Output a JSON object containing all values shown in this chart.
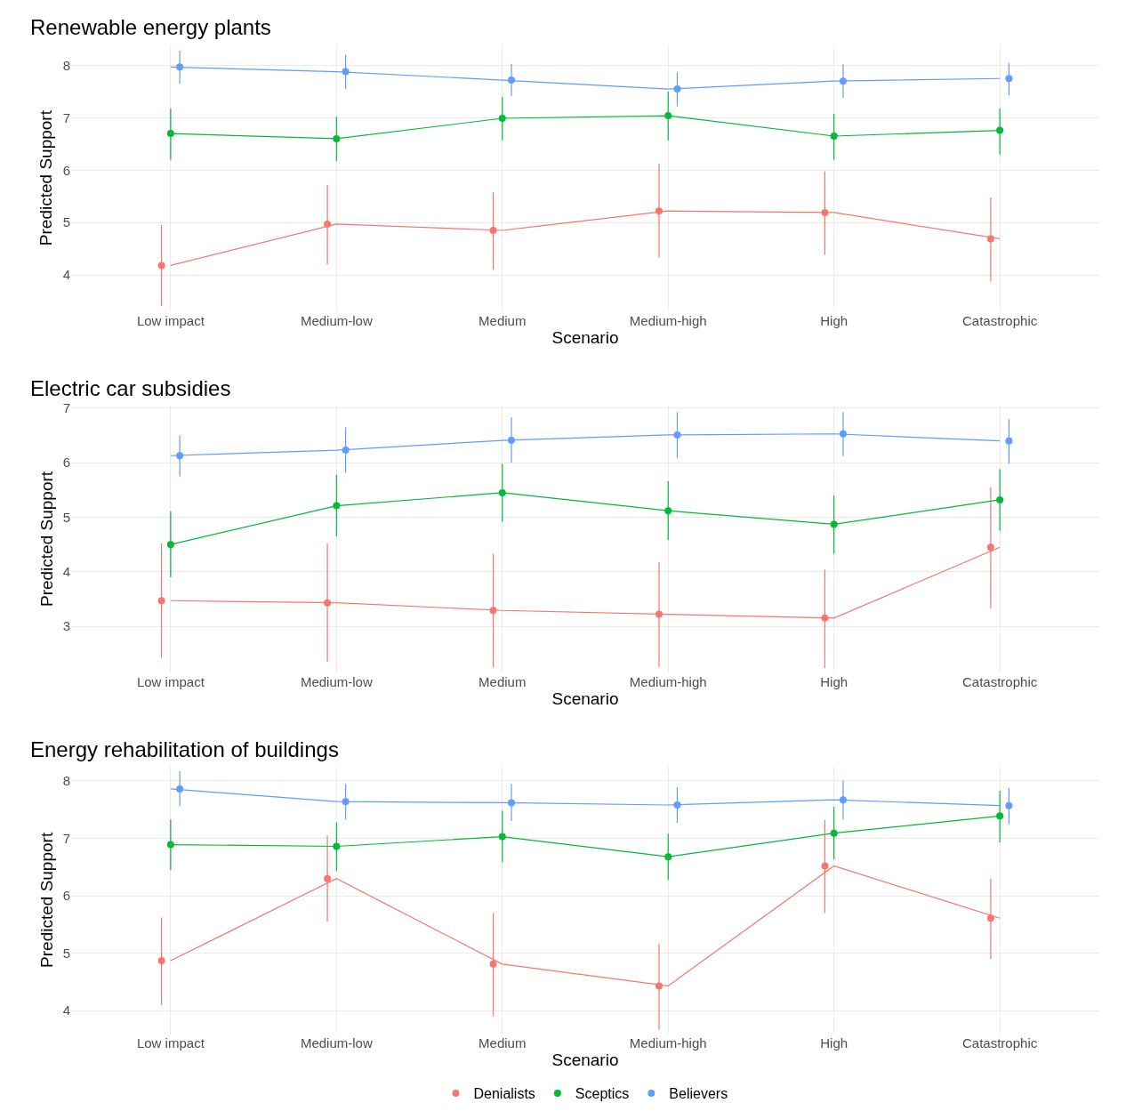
{
  "chart_data": [
    {
      "type": "line",
      "title": "Renewable energy plants",
      "xlabel": "Scenario",
      "ylabel": "Predicted Support",
      "categories": [
        "Low impact",
        "Medium-low",
        "Medium",
        "Medium-high",
        "High",
        "Catastrophic"
      ],
      "ylim": [
        3.3,
        8.4
      ],
      "yticks": [
        4,
        5,
        6,
        7,
        8
      ],
      "grid": true,
      "legend": "bottom",
      "marker": "circle",
      "series": [
        {
          "name": "Denialists",
          "color": "#f8766d",
          "values": [
            4.18,
            4.97,
            4.85,
            5.22,
            5.19,
            4.69
          ],
          "errors": [
            [
              3.4,
              4.95
            ],
            [
              4.2,
              5.72
            ],
            [
              4.1,
              5.58
            ],
            [
              4.33,
              6.12
            ],
            [
              4.38,
              5.98
            ],
            [
              3.87,
              5.48
            ]
          ]
        },
        {
          "name": "Sceptics",
          "color": "#00ba38",
          "values": [
            6.7,
            6.6,
            6.99,
            7.04,
            6.65,
            6.76
          ],
          "errors": [
            [
              6.2,
              7.18
            ],
            [
              6.17,
              7.02
            ],
            [
              6.57,
              7.4
            ],
            [
              6.57,
              7.5
            ],
            [
              6.2,
              7.08
            ],
            [
              6.3,
              7.18
            ]
          ]
        },
        {
          "name": "Believers",
          "color": "#619cff",
          "values": [
            7.97,
            7.88,
            7.72,
            7.55,
            7.7,
            7.75
          ],
          "errors": [
            [
              7.65,
              8.28
            ],
            [
              7.55,
              8.2
            ],
            [
              7.42,
              8.03
            ],
            [
              7.22,
              7.87
            ],
            [
              7.38,
              8.02
            ],
            [
              7.43,
              8.05
            ]
          ]
        }
      ]
    },
    {
      "type": "line",
      "title": "Electric car subsidies",
      "xlabel": "Scenario",
      "ylabel": "Predicted Support",
      "categories": [
        "Low impact",
        "Medium-low",
        "Medium",
        "Medium-high",
        "High",
        "Catastrophic"
      ],
      "ylim": [
        2.15,
        7.05
      ],
      "yticks": [
        3,
        4,
        5,
        6,
        7
      ],
      "grid": true,
      "marker": "circle",
      "series": [
        {
          "color": "#f8766d",
          "values": [
            3.47,
            3.43,
            3.29,
            3.22,
            3.15,
            4.45
          ],
          "errors": [
            [
              2.42,
              4.52
            ],
            [
              2.35,
              4.52
            ],
            [
              2.25,
              4.33
            ],
            [
              2.25,
              4.18
            ],
            [
              2.23,
              4.04
            ],
            [
              3.33,
              5.55
            ]
          ]
        },
        {
          "color": "#00ba38",
          "values": [
            4.5,
            5.21,
            5.45,
            5.12,
            4.87,
            5.32
          ],
          "errors": [
            [
              3.9,
              5.11
            ],
            [
              4.65,
              5.78
            ],
            [
              4.92,
              5.98
            ],
            [
              4.58,
              5.66
            ],
            [
              4.33,
              5.4
            ],
            [
              4.75,
              5.88
            ]
          ]
        },
        {
          "color": "#619cff",
          "values": [
            6.13,
            6.23,
            6.41,
            6.51,
            6.53,
            6.4
          ],
          "errors": [
            [
              5.75,
              6.5
            ],
            [
              5.82,
              6.65
            ],
            [
              6.0,
              6.83
            ],
            [
              6.08,
              6.93
            ],
            [
              6.12,
              6.93
            ],
            [
              5.98,
              6.8
            ]
          ]
        }
      ]
    },
    {
      "type": "line",
      "title": "Energy rehabilitation of buildings",
      "xlabel": "Scenario",
      "ylabel": "Predicted Support",
      "categories": [
        "Low impact",
        "Medium-low",
        "Medium",
        "Medium-high",
        "High",
        "Catastrophic"
      ],
      "ylim": [
        3.6,
        8.25
      ],
      "yticks": [
        4,
        5,
        6,
        7,
        8
      ],
      "grid": true,
      "marker": "circle",
      "series": [
        {
          "color": "#f8766d",
          "values": [
            4.87,
            6.3,
            4.81,
            4.43,
            6.52,
            5.61
          ],
          "errors": [
            [
              4.1,
              5.62
            ],
            [
              5.55,
              7.05
            ],
            [
              3.9,
              5.7
            ],
            [
              3.66,
              5.17
            ],
            [
              5.7,
              7.32
            ],
            [
              4.9,
              6.3
            ]
          ]
        },
        {
          "color": "#00ba38",
          "values": [
            6.89,
            6.86,
            7.03,
            6.68,
            7.09,
            7.39
          ],
          "errors": [
            [
              6.45,
              7.33
            ],
            [
              6.43,
              7.28
            ],
            [
              6.58,
              7.48
            ],
            [
              6.27,
              7.08
            ],
            [
              6.63,
              7.55
            ],
            [
              6.93,
              7.83
            ]
          ]
        },
        {
          "color": "#619cff",
          "values": [
            7.86,
            7.64,
            7.62,
            7.58,
            7.67,
            7.57
          ],
          "errors": [
            [
              7.56,
              8.17
            ],
            [
              7.33,
              7.95
            ],
            [
              7.3,
              7.95
            ],
            [
              7.27,
              7.89
            ],
            [
              7.33,
              8.01
            ],
            [
              7.25,
              7.88
            ]
          ]
        }
      ]
    }
  ]
}
